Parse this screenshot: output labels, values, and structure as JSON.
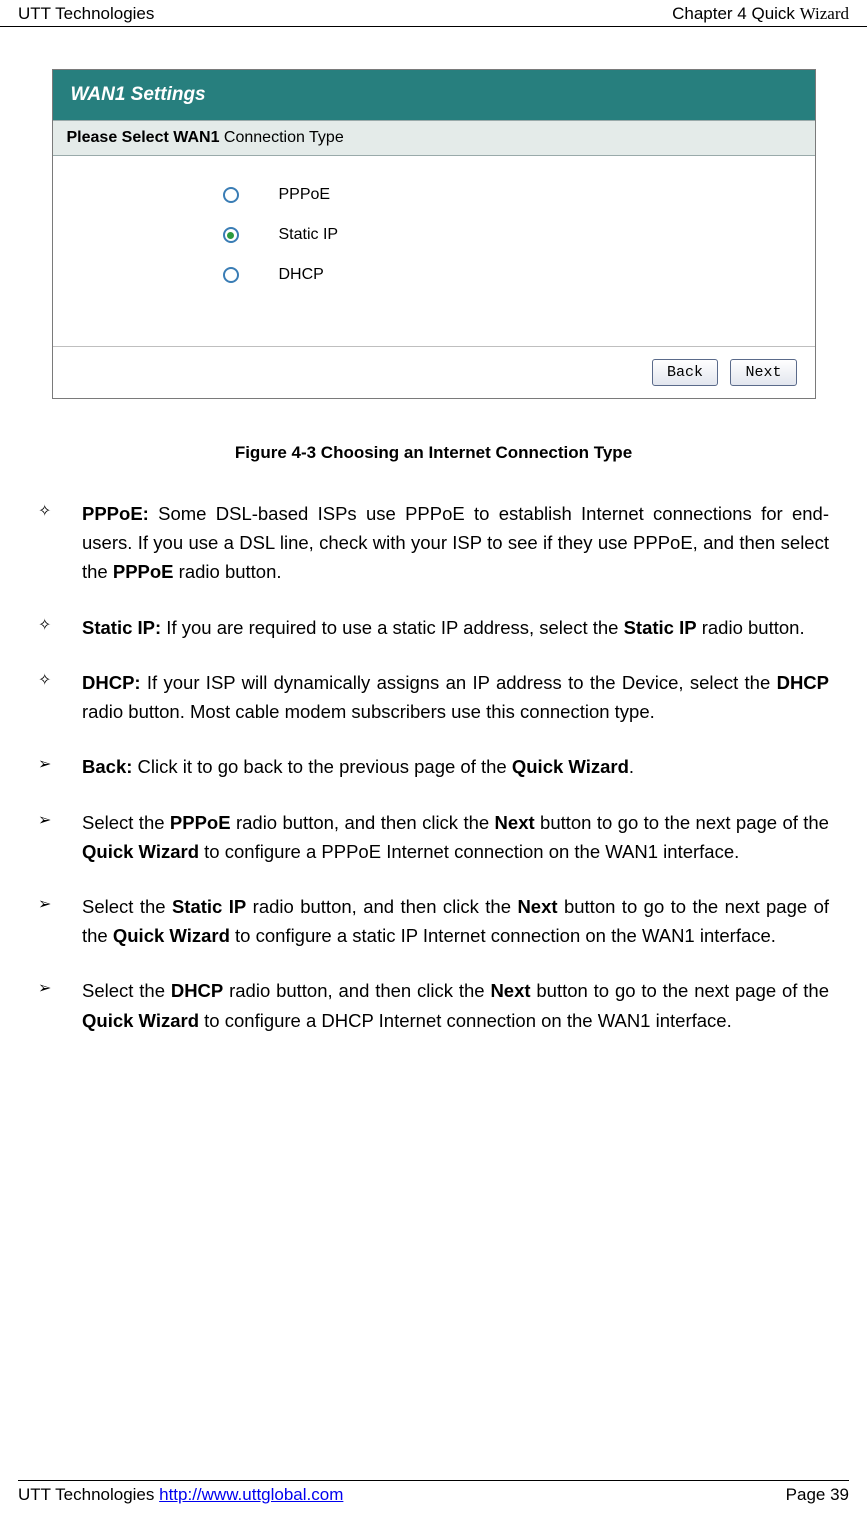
{
  "header": {
    "left": "UTT Technologies",
    "right_prefix": "Chapter 4 Quick ",
    "right_italic": "Wizard"
  },
  "panel": {
    "title": "WAN1 Settings",
    "bg": "#277f7e",
    "prompt": "Please Select WAN1 Connection Type",
    "options": [
      {
        "label": "PPPoE",
        "selected": false
      },
      {
        "label": "Static IP",
        "selected": true
      },
      {
        "label": "DHCP",
        "selected": false
      }
    ],
    "buttons": {
      "back": "Back",
      "next": "Next"
    }
  },
  "caption": "Figure 4-3 Choosing an Internet Connection Type",
  "items": {
    "pppoe_lead": "PPPoE:",
    "pppoe_text1": " Some DSL-based ISPs use PPPoE to establish Internet connections for end-users. If you use a DSL line, check with your ISP to see if they use PPPoE, and then select the ",
    "pppoe_bold_inline": "PPPoE",
    "pppoe_text2": " radio button.",
    "static_lead": "Static IP:",
    "static_text1": " If you are required to use a static IP address, select the ",
    "static_bold_inline": "Static IP",
    "static_text2": " radio button.",
    "dhcp_lead": "DHCP:",
    "dhcp_text1": " If your ISP will dynamically assigns an IP address to the Device, select the ",
    "dhcp_bold_inline": "DHCP",
    "dhcp_text2": " radio button. Most cable modem subscribers use this connection type.",
    "back_lead": "Back:",
    "back_text1": " Click it to go back to the previous page of the ",
    "back_bold_inline": "Quick Wizard",
    "back_text2": ".",
    "sel_p_1": "Select the ",
    "sel_p_b1": "PPPoE",
    "sel_p_2": " radio button, and then click the ",
    "sel_p_b2": "Next",
    "sel_p_3": " button to go to the next page of the ",
    "sel_p_b3": "Quick Wizard",
    "sel_p_4": " to configure a PPPoE Internet connection on the WAN1 interface.",
    "sel_s_1": "Select the ",
    "sel_s_b1": "Static IP",
    "sel_s_2": " radio button, and then click the ",
    "sel_s_b2": "Next",
    "sel_s_3": " button to go to the next page of the ",
    "sel_s_b3": "Quick Wizard",
    "sel_s_4": " to configure a static IP Internet connection on the WAN1 interface.",
    "sel_d_1": "Select the ",
    "sel_d_b1": "DHCP",
    "sel_d_2": " radio button, and then click the ",
    "sel_d_b2": "Next",
    "sel_d_3": " button to go to the next page of the ",
    "sel_d_b3": "Quick Wizard",
    "sel_d_4": " to configure a DHCP Internet connection on the WAN1 interface."
  },
  "bullets": {
    "diamond": "✧",
    "arrow": "➢"
  },
  "footer": {
    "left_company": "UTT Technologies ",
    "left_link": "http://www.uttglobal.com",
    "right": "Page 39"
  }
}
